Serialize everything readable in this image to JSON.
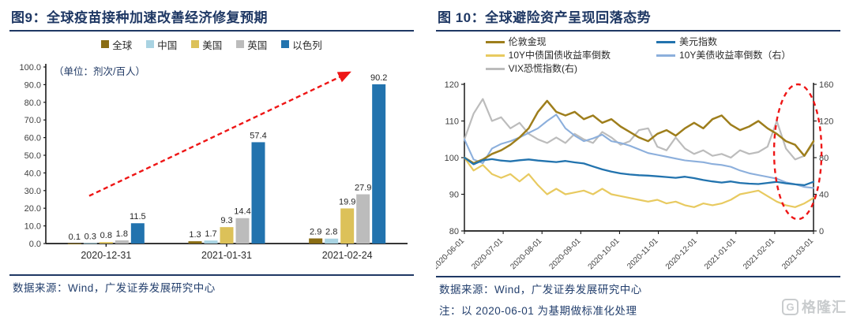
{
  "left_panel": {
    "title": "图9：全球疫苗接种加速改善经济修复预期",
    "source": "数据来源：Wind，广发证券发展研究中心"
  },
  "right_panel": {
    "title": "图 10：全球避险资产呈现回落态势",
    "source": "数据来源：Wind，广发证券发展研究中心",
    "note": "注：以 2020-06-01 为基期做标准化处理"
  },
  "watermark": {
    "letter": "G",
    "text": "格隆汇"
  },
  "colors": {
    "navy": "#1f3864",
    "axis": "#1a1a1a",
    "tick_text": "#3f3f3f",
    "red": "#ee1616"
  },
  "chart_data": [
    {
      "type": "bar",
      "title": "全球疫苗接种加速改善经济修复预期",
      "unit": "（单位：剂次/百人）",
      "categories": [
        "2020-12-31",
        "2021-01-31",
        "2021-02-24"
      ],
      "series": [
        {
          "name": "全球",
          "color": "#8a6d14",
          "values": [
            0.1,
            1.3,
            2.9
          ]
        },
        {
          "name": "中国",
          "color": "#a9d3e2",
          "values": [
            0.3,
            1.7,
            2.8
          ]
        },
        {
          "name": "美国",
          "color": "#dcc159",
          "values": [
            0.8,
            9.3,
            19.9
          ]
        },
        {
          "name": "英国",
          "color": "#bcbcbc",
          "values": [
            1.8,
            14.4,
            27.9
          ]
        },
        {
          "name": "以色列",
          "color": "#2273ae",
          "values": [
            11.5,
            57.4,
            90.2
          ]
        }
      ],
      "ylim": [
        0,
        100
      ],
      "yticks": [
        0,
        10,
        20,
        30,
        40,
        50,
        60,
        70,
        80,
        90,
        100
      ],
      "grid": false,
      "legend_position": "top",
      "trend_arrow": {
        "x1_frac": 0.12,
        "y1": 27,
        "x2_frac": 0.84,
        "y2": 97,
        "style": "dashed",
        "color": "#ee1616"
      }
    },
    {
      "type": "line",
      "title": "全球避险资产呈现回落态势",
      "x_labels": [
        "2020-06-01",
        "2020-07-01",
        "2020-08-01",
        "2020-09-01",
        "2020-10-01",
        "2020-11-01",
        "2020-12-01",
        "2021-01-01",
        "2021-02-01",
        "2021-03-01"
      ],
      "left_ylim": [
        80,
        120
      ],
      "left_ticks": [
        80,
        90,
        100,
        110,
        120
      ],
      "right_ylim": [
        0,
        160
      ],
      "right_ticks": [
        0,
        40,
        80,
        120,
        160
      ],
      "grid": false,
      "legend_position": "top",
      "series": [
        {
          "name": "伦敦金现",
          "axis": "left",
          "color": "#9e7e1c",
          "width": 2.5,
          "z": 4,
          "values": [
            100,
            98.5,
            99.5,
            101,
            102,
            103.5,
            105.5,
            108,
            112.5,
            115.5,
            112.5,
            111.5,
            112.5,
            110.5,
            111.5,
            109.5,
            110.5,
            108.5,
            107,
            105.5,
            104.5,
            106.5,
            107.5,
            106,
            108,
            109.5,
            108,
            110.5,
            111.5,
            109,
            107.5,
            108.5,
            110,
            108,
            106.5,
            104.5,
            103.5,
            100.5,
            104.5
          ]
        },
        {
          "name": "10Y中债国债收益率倒数",
          "axis": "left",
          "color": "#e8ca60",
          "width": 2.2,
          "z": 2,
          "values": [
            100,
            96.5,
            98,
            95.5,
            94.5,
            95.5,
            93.5,
            95.5,
            92.5,
            90,
            91.5,
            90,
            90.5,
            91,
            90,
            91.5,
            90,
            89.5,
            89,
            88.5,
            88,
            88.5,
            87.5,
            88,
            87,
            86.5,
            87.5,
            87,
            87.5,
            88.5,
            90,
            90.5,
            91,
            89.5,
            88,
            87,
            86.5,
            87.5,
            89
          ]
        },
        {
          "name": "VIX恐慌指数(右)",
          "axis": "right",
          "color": "#bcbcbc",
          "width": 2.2,
          "z": 1,
          "values": [
            100,
            128,
            144,
            120,
            124,
            112,
            118,
            106,
            100,
            96,
            102,
            96,
            106,
            100,
            96,
            108,
            102,
            94,
            98,
            110,
            112,
            92,
            88,
            102,
            90,
            84,
            88,
            82,
            84,
            80,
            88,
            84,
            86,
            92,
            120,
            90,
            78,
            82,
            96
          ]
        },
        {
          "name": "美元指数",
          "axis": "left",
          "color": "#2273ae",
          "width": 2.3,
          "z": 5,
          "values": [
            100,
            98.2,
            99.3,
            99.6,
            99.2,
            99,
            99.3,
            99.5,
            99.2,
            99,
            98.8,
            99.1,
            98.7,
            98.4,
            97.6,
            96.8,
            96.2,
            95.7,
            95.4,
            95.2,
            95.1,
            94.9,
            94.7,
            94.5,
            94.8,
            94.4,
            93.9,
            93.5,
            93.2,
            93.5,
            93.1,
            92.9,
            92.8,
            93.1,
            93.4,
            93,
            92.7,
            92.5,
            93.4
          ]
        },
        {
          "name": "10Y美债收益率倒数（右）",
          "axis": "right",
          "color": "#8cafdc",
          "width": 2.1,
          "z": 3,
          "values": [
            100,
            78,
            74,
            90,
            95,
            98,
            102,
            107,
            112,
            120,
            127,
            112,
            104,
            98,
            101,
            105,
            98,
            96,
            93,
            89,
            85,
            83,
            81,
            79,
            77,
            76,
            75,
            73,
            72,
            70,
            66,
            63,
            61,
            59,
            57,
            53,
            51,
            48,
            47
          ]
        }
      ],
      "legend_columns": [
        [
          0,
          1,
          2
        ],
        [
          3,
          4
        ]
      ],
      "highlight_ellipse": {
        "cx_frac": 0.955,
        "cy_frac": 0.46,
        "rx_frac": 0.068,
        "ry_frac": 0.46,
        "color": "#ee1616",
        "style": "dashed"
      }
    }
  ]
}
